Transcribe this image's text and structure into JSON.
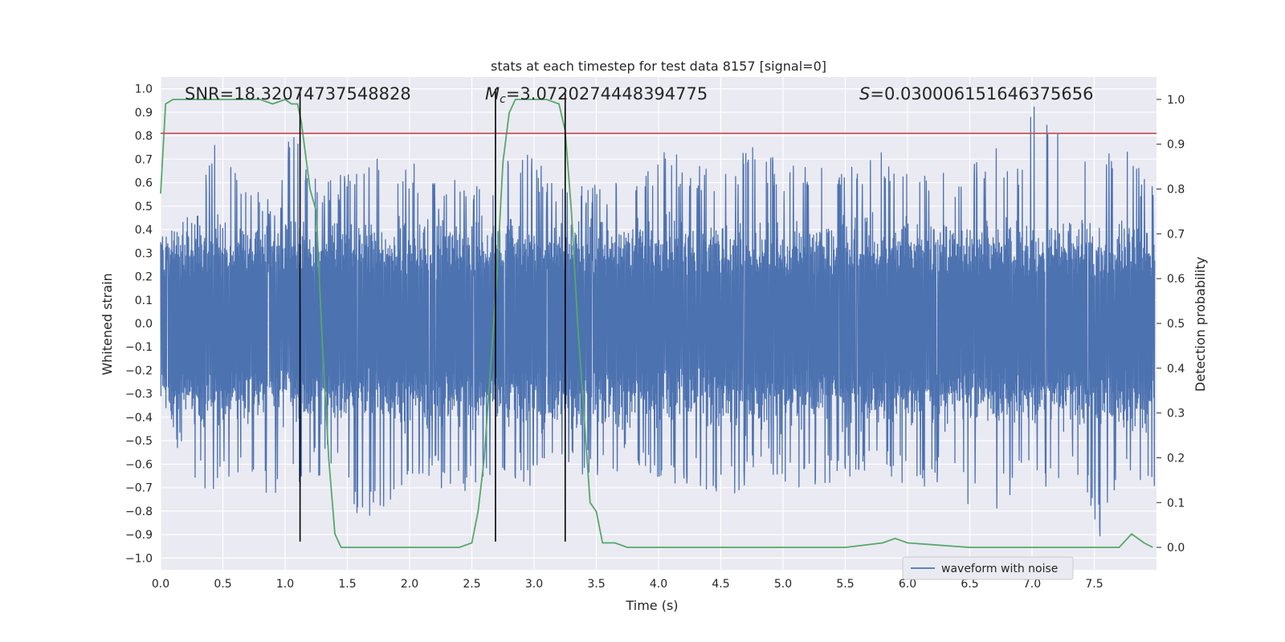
{
  "chart_data": {
    "type": "line",
    "title": "stats at each timestep for test data 8157 [signal=0]",
    "xlabel": "Time (s)",
    "ylabel_left": "Whitened strain",
    "ylabel_right": "Detection probability",
    "xlim": [
      0.0,
      8.0
    ],
    "ylim_left": [
      -1.05,
      1.05
    ],
    "ylim_right": [
      -0.05,
      1.05
    ],
    "xticks": [
      "0.0",
      "0.5",
      "1.0",
      "1.5",
      "2.0",
      "2.5",
      "3.0",
      "3.5",
      "4.0",
      "4.5",
      "5.0",
      "5.5",
      "6.0",
      "6.5",
      "7.0",
      "7.5"
    ],
    "yticks_left": [
      "1.0",
      "0.9",
      "0.8",
      "0.7",
      "0.6",
      "0.5",
      "0.4",
      "0.3",
      "0.2",
      "0.1",
      "0.0",
      "−0.1",
      "−0.2",
      "−0.3",
      "−0.4",
      "−0.5",
      "−0.6",
      "−0.7",
      "−0.8",
      "−0.9",
      "−1.0"
    ],
    "yticks_right": [
      "1.0",
      "0.9",
      "0.8",
      "0.7",
      "0.6",
      "0.5",
      "0.4",
      "0.3",
      "0.2",
      "0.1",
      "0.0"
    ],
    "grid": true,
    "legend_position": "lower-right",
    "annotations": {
      "snr": "SNR=18.32074737548828",
      "mc_symbol": "M",
      "mc_sub": "c",
      "mc_value": "=3.0720274448394775",
      "s_symbol": "S",
      "s_value": "=0.030006151646375656"
    },
    "series": [
      {
        "name": "waveform with noise",
        "axis": "left",
        "color": "#4c72b0",
        "envelope_upper_x": [
          0.0,
          0.3,
          0.42,
          0.6,
          0.8,
          0.95,
          1.05,
          1.2,
          1.4,
          1.68,
          1.8,
          2.0,
          2.2,
          2.4,
          2.6,
          2.8,
          3.0,
          3.1,
          3.3,
          3.6,
          3.8,
          4.0,
          4.2,
          4.4,
          4.6,
          4.78,
          5.0,
          5.2,
          5.5,
          5.8,
          6.0,
          6.25,
          6.5,
          6.75,
          6.9,
          7.02,
          7.3,
          7.6,
          7.8,
          7.95
        ],
        "envelope_upper_y": [
          0.35,
          0.55,
          0.82,
          0.65,
          0.55,
          0.55,
          0.89,
          0.62,
          0.62,
          0.82,
          0.6,
          0.7,
          0.6,
          0.62,
          0.63,
          0.7,
          0.74,
          0.64,
          0.6,
          0.63,
          0.6,
          0.77,
          0.7,
          0.68,
          0.7,
          0.79,
          0.69,
          0.68,
          0.66,
          0.76,
          0.65,
          0.66,
          0.68,
          0.76,
          0.68,
          0.99,
          0.76,
          0.78,
          0.73,
          0.6
        ],
        "envelope_lower_x": [
          0.0,
          0.2,
          0.42,
          0.6,
          0.8,
          1.0,
          1.15,
          1.4,
          1.55,
          1.8,
          2.0,
          2.2,
          2.4,
          2.6,
          2.8,
          3.0,
          3.1,
          3.3,
          3.5,
          3.8,
          4.0,
          4.2,
          4.4,
          4.6,
          4.78,
          5.0,
          5.2,
          5.5,
          5.8,
          6.0,
          6.2,
          6.4,
          6.6,
          6.9,
          7.0,
          7.2,
          7.4,
          7.55,
          7.75,
          7.95
        ],
        "envelope_lower_y": [
          -0.4,
          -0.6,
          -0.76,
          -0.65,
          -0.7,
          -0.79,
          -0.68,
          -0.62,
          -0.83,
          -0.81,
          -0.7,
          -0.7,
          -0.72,
          -0.7,
          -0.65,
          -0.71,
          -0.6,
          -0.65,
          -0.65,
          -0.62,
          -0.71,
          -0.71,
          -0.72,
          -0.76,
          -0.62,
          -0.7,
          -0.7,
          -0.67,
          -0.63,
          -0.7,
          -0.7,
          -0.72,
          -0.84,
          -0.72,
          -0.72,
          -0.7,
          -0.64,
          -0.93,
          -0.7,
          -0.72
        ],
        "core_amplitude": 0.3
      },
      {
        "name": "",
        "axis": "right",
        "color": "#55a868",
        "x": [
          0.0,
          0.04,
          0.1,
          0.2,
          0.4,
          0.6,
          0.8,
          0.9,
          1.0,
          1.05,
          1.1,
          1.13,
          1.2,
          1.25,
          1.3,
          1.35,
          1.4,
          1.45,
          1.5,
          1.7,
          1.8,
          2.0,
          2.2,
          2.4,
          2.5,
          2.55,
          2.6,
          2.65,
          2.7,
          2.75,
          2.8,
          2.85,
          2.9,
          3.0,
          3.1,
          3.2,
          3.25,
          3.3,
          3.35,
          3.4,
          3.45,
          3.5,
          3.55,
          3.65,
          3.75,
          3.9,
          4.2,
          4.5,
          5.0,
          5.5,
          5.8,
          5.9,
          6.0,
          6.5,
          7.0,
          7.5,
          7.6,
          7.7,
          7.8,
          7.9,
          7.97
        ],
        "y": [
          0.79,
          0.99,
          1.0,
          1.0,
          1.0,
          1.0,
          1.0,
          0.99,
          1.0,
          0.99,
          0.99,
          0.95,
          0.8,
          0.75,
          0.45,
          0.2,
          0.03,
          0.0,
          0.0,
          0.0,
          0.0,
          0.0,
          0.0,
          0.0,
          0.01,
          0.08,
          0.2,
          0.4,
          0.6,
          0.86,
          0.97,
          1.0,
          1.0,
          1.0,
          1.0,
          0.99,
          0.93,
          0.75,
          0.5,
          0.3,
          0.1,
          0.08,
          0.01,
          0.01,
          0.0,
          0.0,
          0.0,
          0.0,
          0.0,
          0.0,
          0.01,
          0.02,
          0.01,
          0.0,
          0.0,
          0.0,
          0.0,
          0.0,
          0.03,
          0.01,
          0.0
        ]
      }
    ],
    "threshold_line": {
      "axis": "left",
      "y": 0.81,
      "color": "#c44e52"
    },
    "window_lines": {
      "color": "#000000",
      "x": [
        1.12,
        2.69,
        3.25
      ],
      "ymin": -0.93,
      "ymax": 1.0
    }
  }
}
